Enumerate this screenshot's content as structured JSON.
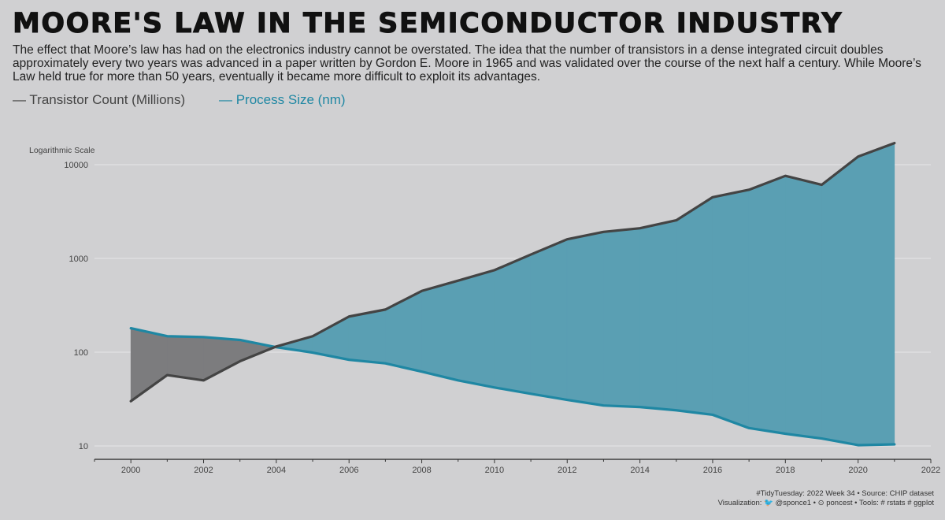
{
  "header": {
    "title": "Moore's Law in the Semiconductor Industry",
    "subtitle": "The effect that Moore’s law has had on the electronics industry cannot be overstated. The idea that the number of transistors in a dense integrated circuit doubles approximately every two years was advanced in a paper written by Gordon E. Moore in 1965 and was validated over the course of the next half a century. While Moore’s Law held true for more than 50 years, eventually it became more difficult to exploit its advantages."
  },
  "legend": {
    "transistor": "— Transistor Count (Millions)",
    "process": "— Process Size (nm)"
  },
  "caption": {
    "line1": "#TidyTuesday: 2022 Week 34 • Source: CHIP dataset",
    "line2": "Visualization: 🐦 @sponce1 • ⊙ poncest • Tools: # rstats # ggplot"
  },
  "chart_data": {
    "type": "area",
    "scale_note": "Logarithmic Scale",
    "y_scale": "log10",
    "ylim": [
      8,
      20000
    ],
    "xlim": [
      1999,
      2022
    ],
    "x_ticks": [
      2000,
      2002,
      2004,
      2006,
      2008,
      2010,
      2012,
      2014,
      2016,
      2018,
      2020,
      2022
    ],
    "y_ticks": [
      10,
      100,
      1000,
      10000
    ],
    "x": [
      2000,
      2001,
      2002,
      2003,
      2004,
      2005,
      2006,
      2007,
      2008,
      2009,
      2010,
      2011,
      2012,
      2013,
      2014,
      2015,
      2016,
      2017,
      2018,
      2019,
      2020,
      2021
    ],
    "series": [
      {
        "name": "Transistor Count (Millions)",
        "color": "#444444",
        "values": [
          30,
          57,
          50,
          80,
          115,
          148,
          240,
          285,
          450,
          580,
          750,
          1100,
          1600,
          1920,
          2100,
          2550,
          4500,
          5400,
          7600,
          6100,
          12200,
          17000
        ]
      },
      {
        "name": "Process Size (nm)",
        "color": "#1f87a3",
        "values": [
          180,
          148,
          145,
          135,
          113,
          99,
          83,
          76,
          62,
          50,
          42,
          36,
          31,
          27,
          26,
          24,
          21.5,
          15.5,
          13.5,
          12,
          10.2,
          10.4
        ]
      }
    ],
    "fill_colors": {
      "transistor_above": "#7c7c7e",
      "process_above": "#5a9fb3"
    },
    "grid": true
  }
}
